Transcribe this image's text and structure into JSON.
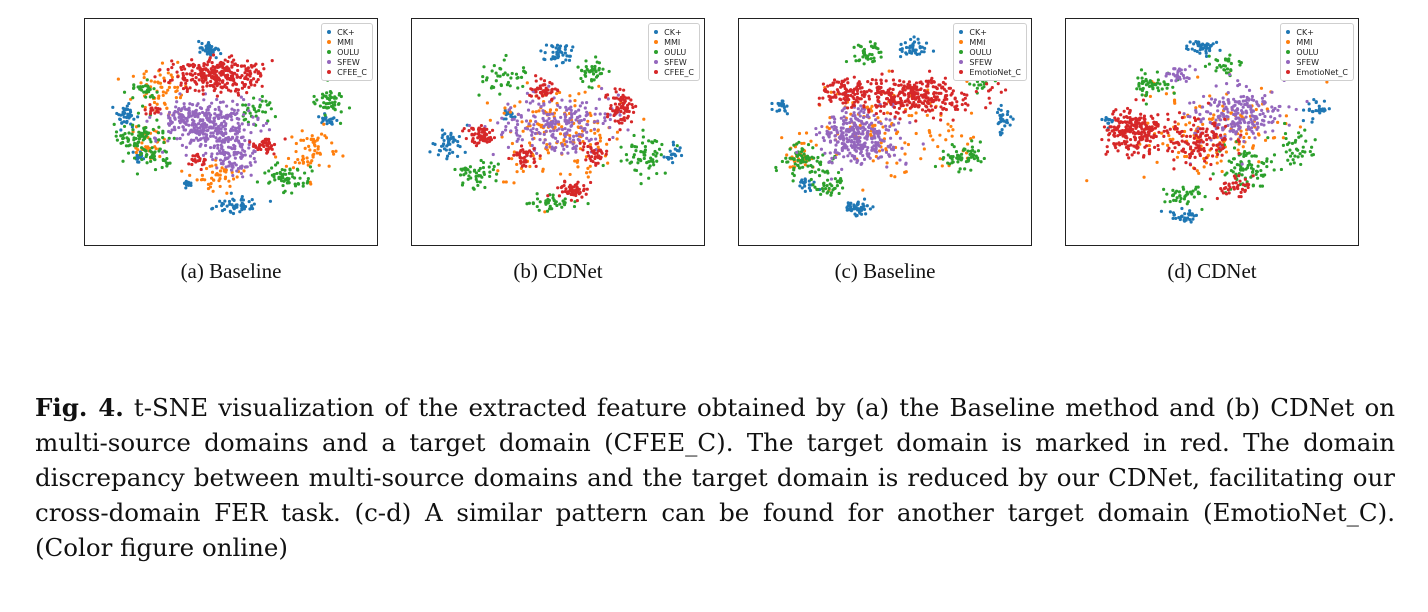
{
  "colors": {
    "CK+": "#1f77b4",
    "MMI": "#ff7f0e",
    "OULU": "#2ca02c",
    "SFEW": "#9467bd",
    "target": "#d62728"
  },
  "chart_data": [
    {
      "type": "scatter",
      "title": "",
      "subcaption": "(a) Baseline",
      "legend": [
        "CK+",
        "MMI",
        "OULU",
        "SFEW",
        "CFEE_C"
      ],
      "legend_position": "top-right",
      "grid": false,
      "series": [
        {
          "name": "CK+",
          "clusters": [
            [
              0.42,
              0.11,
              0.04,
              0.03,
              40
            ],
            [
              0.12,
              0.42,
              0.03,
              0.06,
              40
            ],
            [
              0.53,
              0.85,
              0.07,
              0.04,
              55
            ],
            [
              0.34,
              0.75,
              0.02,
              0.03,
              15
            ],
            [
              0.85,
              0.44,
              0.03,
              0.04,
              20
            ],
            [
              0.16,
              0.62,
              0.02,
              0.03,
              15
            ]
          ]
        },
        {
          "name": "MMI",
          "clusters": [
            [
              0.25,
              0.28,
              0.1,
              0.12,
              60
            ],
            [
              0.78,
              0.58,
              0.1,
              0.12,
              60
            ],
            [
              0.45,
              0.7,
              0.1,
              0.08,
              45
            ],
            [
              0.2,
              0.55,
              0.06,
              0.1,
              35
            ]
          ]
        },
        {
          "name": "OULU",
          "clusters": [
            [
              0.18,
              0.52,
              0.09,
              0.08,
              80
            ],
            [
              0.22,
              0.62,
              0.05,
              0.05,
              40
            ],
            [
              0.7,
              0.72,
              0.09,
              0.06,
              60
            ],
            [
              0.86,
              0.35,
              0.05,
              0.08,
              50
            ],
            [
              0.58,
              0.4,
              0.08,
              0.06,
              35
            ],
            [
              0.19,
              0.3,
              0.05,
              0.06,
              30
            ]
          ]
        },
        {
          "name": "SFEW",
          "clusters": [
            [
              0.42,
              0.47,
              0.16,
              0.11,
              320
            ],
            [
              0.51,
              0.62,
              0.07,
              0.09,
              90
            ],
            [
              0.33,
              0.42,
              0.06,
              0.05,
              40
            ]
          ]
        },
        {
          "name": "CFEE_C",
          "clusters": [
            [
              0.46,
              0.23,
              0.16,
              0.08,
              300
            ],
            [
              0.62,
              0.56,
              0.05,
              0.04,
              40
            ],
            [
              0.22,
              0.4,
              0.03,
              0.03,
              15
            ],
            [
              0.38,
              0.63,
              0.04,
              0.04,
              20
            ]
          ]
        }
      ]
    },
    {
      "type": "scatter",
      "title": "",
      "subcaption": "(b) CDNet",
      "legend": [
        "CK+",
        "MMI",
        "OULU",
        "SFEW",
        "CFEE_C"
      ],
      "legend_position": "top-right",
      "grid": false,
      "series": [
        {
          "name": "CK+",
          "clusters": [
            [
              0.5,
              0.13,
              0.06,
              0.05,
              45
            ],
            [
              0.1,
              0.55,
              0.05,
              0.08,
              45
            ],
            [
              0.92,
              0.6,
              0.03,
              0.05,
              20
            ],
            [
              0.32,
              0.42,
              0.03,
              0.03,
              15
            ]
          ]
        },
        {
          "name": "MMI",
          "clusters": [
            [
              0.5,
              0.5,
              0.26,
              0.22,
              160
            ]
          ]
        },
        {
          "name": "OULU",
          "clusters": [
            [
              0.62,
              0.22,
              0.05,
              0.06,
              40
            ],
            [
              0.2,
              0.7,
              0.08,
              0.06,
              50
            ],
            [
              0.8,
              0.62,
              0.08,
              0.1,
              60
            ],
            [
              0.3,
              0.25,
              0.08,
              0.08,
              40
            ],
            [
              0.48,
              0.84,
              0.08,
              0.04,
              40
            ]
          ]
        },
        {
          "name": "SFEW",
          "clusters": [
            [
              0.5,
              0.46,
              0.2,
              0.14,
              230
            ]
          ]
        },
        {
          "name": "CFEE_C",
          "clusters": [
            [
              0.73,
              0.38,
              0.05,
              0.08,
              80
            ],
            [
              0.22,
              0.52,
              0.06,
              0.06,
              60
            ],
            [
              0.55,
              0.78,
              0.05,
              0.04,
              60
            ],
            [
              0.38,
              0.62,
              0.04,
              0.05,
              40
            ],
            [
              0.45,
              0.3,
              0.06,
              0.04,
              45
            ],
            [
              0.63,
              0.6,
              0.05,
              0.05,
              40
            ]
          ]
        }
      ]
    },
    {
      "type": "scatter",
      "title": "",
      "subcaption": "(c) Baseline",
      "legend": [
        "CK+",
        "MMI",
        "OULU",
        "SFEW",
        "EmotioNet_C"
      ],
      "legend_position": "top-right",
      "grid": false,
      "series": [
        {
          "name": "CK+",
          "clusters": [
            [
              0.6,
              0.1,
              0.05,
              0.04,
              40
            ],
            [
              0.93,
              0.44,
              0.03,
              0.06,
              30
            ],
            [
              0.4,
              0.87,
              0.05,
              0.04,
              45
            ],
            [
              0.12,
              0.38,
              0.03,
              0.04,
              20
            ],
            [
              0.22,
              0.75,
              0.04,
              0.03,
              20
            ]
          ]
        },
        {
          "name": "MMI",
          "clusters": [
            [
              0.5,
              0.48,
              0.3,
              0.22,
              120
            ],
            [
              0.18,
              0.6,
              0.06,
              0.08,
              30
            ]
          ]
        },
        {
          "name": "OULU",
          "clusters": [
            [
              0.2,
              0.63,
              0.08,
              0.08,
              70
            ],
            [
              0.78,
              0.62,
              0.09,
              0.06,
              60
            ],
            [
              0.45,
              0.12,
              0.07,
              0.05,
              40
            ],
            [
              0.3,
              0.75,
              0.06,
              0.05,
              40
            ],
            [
              0.85,
              0.25,
              0.05,
              0.05,
              30
            ]
          ]
        },
        {
          "name": "SFEW",
          "clusters": [
            [
              0.4,
              0.52,
              0.14,
              0.13,
              320
            ]
          ]
        },
        {
          "name": "EmotioNet_C",
          "clusters": [
            [
              0.58,
              0.33,
              0.24,
              0.09,
              360
            ],
            [
              0.35,
              0.3,
              0.1,
              0.05,
              60
            ]
          ]
        }
      ]
    },
    {
      "type": "scatter",
      "title": "",
      "subcaption": "(d) CDNet",
      "legend": [
        "CK+",
        "MMI",
        "OULU",
        "SFEW",
        "EmotioNet_C"
      ],
      "legend_position": "top-right",
      "grid": false,
      "series": [
        {
          "name": "CK+",
          "clusters": [
            [
              0.47,
              0.1,
              0.06,
              0.04,
              40
            ],
            [
              0.88,
              0.4,
              0.04,
              0.05,
              25
            ],
            [
              0.4,
              0.9,
              0.05,
              0.03,
              30
            ],
            [
              0.12,
              0.45,
              0.02,
              0.03,
              12
            ]
          ]
        },
        {
          "name": "MMI",
          "clusters": [
            [
              0.52,
              0.5,
              0.28,
              0.22,
              150
            ]
          ]
        },
        {
          "name": "OULU",
          "clusters": [
            [
              0.28,
              0.28,
              0.07,
              0.07,
              50
            ],
            [
              0.62,
              0.68,
              0.1,
              0.1,
              80
            ],
            [
              0.8,
              0.58,
              0.07,
              0.08,
              40
            ],
            [
              0.4,
              0.8,
              0.08,
              0.05,
              40
            ],
            [
              0.55,
              0.18,
              0.06,
              0.05,
              30
            ]
          ]
        },
        {
          "name": "SFEW",
          "clusters": [
            [
              0.58,
              0.42,
              0.16,
              0.13,
              230
            ],
            [
              0.38,
              0.22,
              0.05,
              0.04,
              30
            ]
          ]
        },
        {
          "name": "EmotioNet_C",
          "clusters": [
            [
              0.22,
              0.5,
              0.1,
              0.1,
              240
            ],
            [
              0.45,
              0.55,
              0.12,
              0.12,
              130
            ],
            [
              0.58,
              0.75,
              0.06,
              0.06,
              40
            ]
          ]
        }
      ]
    }
  ],
  "caption": {
    "label": "Fig. 4.",
    "text": " t-SNE visualization of the extracted feature obtained by (a) the Baseline method and (b) CDNet on multi-source domains and a target domain (CFEE_C). The target domain is marked in red. The domain discrepancy between multi-source domains and the target domain is reduced by our CDNet, facilitating our cross-domain FER task. (c-d) A similar pattern can be found for another target domain (EmotioNet_C). (Color figure online)"
  }
}
